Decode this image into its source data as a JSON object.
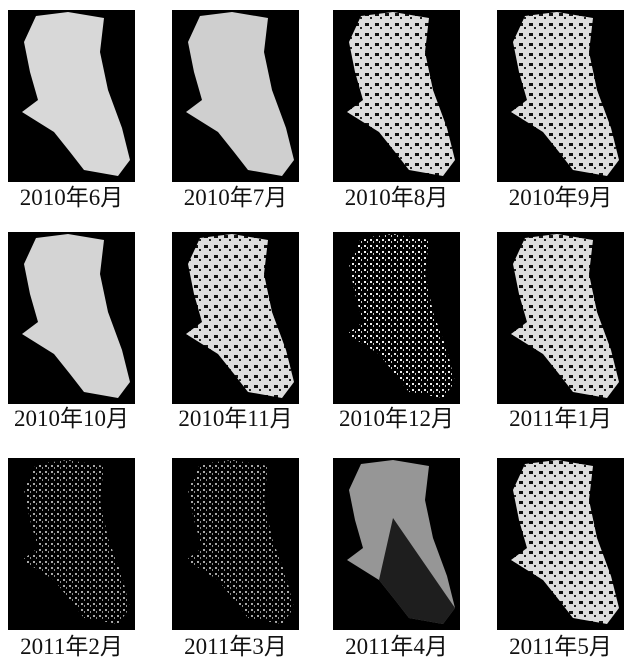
{
  "panels": [
    {
      "caption": "2010年6月"
    },
    {
      "caption": "2010年7月"
    },
    {
      "caption": "2010年8月"
    },
    {
      "caption": "2010年9月"
    },
    {
      "caption": "2010年10月"
    },
    {
      "caption": "2010年11月"
    },
    {
      "caption": "2010年12月"
    },
    {
      "caption": "2011年1月"
    },
    {
      "caption": "2011年2月"
    },
    {
      "caption": "2011年3月"
    },
    {
      "caption": "2011年4月"
    },
    {
      "caption": "2011年5月"
    }
  ]
}
